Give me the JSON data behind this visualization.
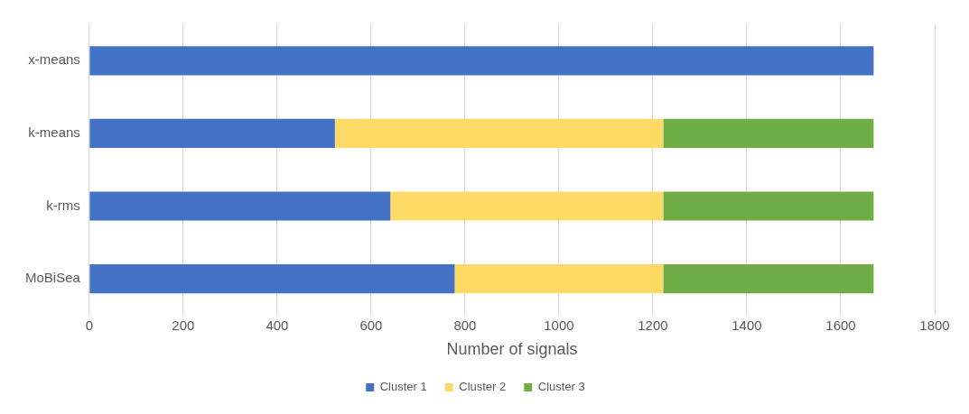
{
  "chart_data": {
    "type": "bar",
    "orientation": "horizontal",
    "stacked": true,
    "xlabel": "Number of signals",
    "categories": [
      "x-means",
      "k-means",
      "k-rms",
      "MoBiSea"
    ],
    "series": [
      {
        "name": "Cluster 1",
        "color": "#4472c4",
        "values": [
          1670,
          523,
          641,
          778
        ]
      },
      {
        "name": "Cluster 2",
        "color": "#ffd966",
        "values": [
          0,
          699,
          581,
          444
        ]
      },
      {
        "name": "Cluster 3",
        "color": "#70ad47",
        "values": [
          0,
          448,
          448,
          448
        ]
      }
    ],
    "xlim": [
      0,
      1800
    ],
    "xticks": [
      0,
      200,
      400,
      600,
      800,
      1000,
      1200,
      1400,
      1600,
      1800
    ],
    "grid": "x",
    "legend": "bottom"
  }
}
